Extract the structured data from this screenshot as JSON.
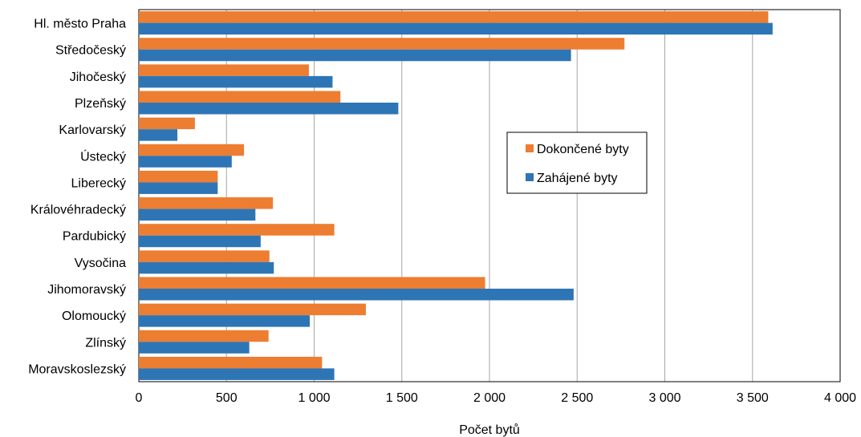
{
  "chart_data": {
    "type": "bar",
    "orientation": "horizontal",
    "categories": [
      "Hl. město Praha",
      "Středočeský",
      "Jihočeský",
      "Plzeňský",
      "Karlovarský",
      "Ústecký",
      "Liberecký",
      "Královéhradecký",
      "Pardubický",
      "Vysočina",
      "Jihomoravský",
      "Olomoucký",
      "Zlínský",
      "Moravskoslezský"
    ],
    "series": [
      {
        "name": "Dokončené byty",
        "color": "#ED7D31",
        "values": [
          3590,
          2770,
          970,
          1150,
          320,
          600,
          450,
          765,
          1115,
          745,
          1975,
          1295,
          740,
          1045
        ]
      },
      {
        "name": "Zahájené byty",
        "color": "#2E75B6",
        "values": [
          3615,
          2465,
          1105,
          1480,
          220,
          530,
          450,
          665,
          695,
          770,
          2480,
          975,
          630,
          1115
        ]
      }
    ],
    "xlabel": "Počet bytů",
    "xlim": [
      0,
      4000
    ],
    "xticks": [
      0,
      500,
      1000,
      1500,
      2000,
      2500,
      3000,
      3500,
      4000
    ],
    "xtick_labels": [
      "0",
      "500",
      "1 000",
      "1 500",
      "2 000",
      "2 500",
      "3 000",
      "3 500",
      "4 000"
    ],
    "grid": "vertical",
    "legend_position": "center-right"
  }
}
